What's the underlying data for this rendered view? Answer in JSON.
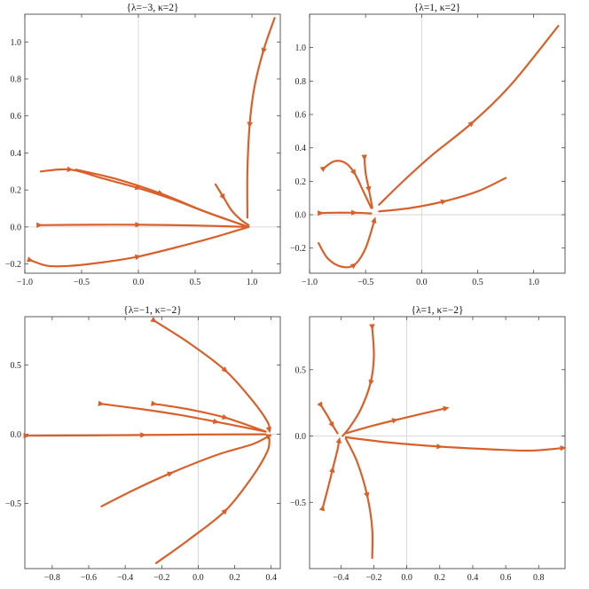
{
  "chart_data": [
    {
      "type": "line",
      "title": "{λ=−3, κ=2}",
      "xlim": [
        -1.0,
        1.25
      ],
      "ylim": [
        -0.25,
        1.15
      ],
      "x_ticks": [
        -1.0,
        -0.5,
        0.0,
        0.5,
        1.0
      ],
      "x_tick_labels": [
        "−1.0",
        "−0.5",
        "0.0",
        "0.5",
        "1.0"
      ],
      "y_ticks": [
        -0.2,
        0.0,
        0.2,
        0.4,
        0.6,
        0.8,
        1.0
      ],
      "y_tick_labels": [
        "−0.2",
        "0.0",
        "0.2",
        "0.4",
        "0.6",
        "0.8",
        "1.0"
      ],
      "series": [
        {
          "points": [
            [
              1.2,
              1.13
            ],
            [
              1.1,
              0.95
            ],
            [
              1.02,
              0.75
            ],
            [
              0.98,
              0.55
            ],
            [
              0.96,
              0.3
            ],
            [
              0.96,
              0.05
            ]
          ],
          "arrows_at": [
            1,
            3
          ]
        },
        {
          "points": [
            [
              0.68,
              0.23
            ],
            [
              0.75,
              0.16
            ],
            [
              0.82,
              0.09
            ],
            [
              0.9,
              0.04
            ],
            [
              0.97,
              0.01
            ]
          ],
          "arrows_at": [
            1
          ]
        },
        {
          "points": [
            [
              -0.86,
              0.3
            ],
            [
              -0.6,
              0.31
            ],
            [
              -0.3,
              0.26
            ],
            [
              0.0,
              0.21
            ],
            [
              0.3,
              0.15
            ],
            [
              0.6,
              0.08
            ],
            [
              0.97,
              0.0
            ]
          ],
          "arrows_at": [
            1,
            3
          ]
        },
        {
          "points": [
            [
              -0.55,
              0.31
            ],
            [
              -0.2,
              0.26
            ],
            [
              0.2,
              0.18
            ],
            [
              0.6,
              0.08
            ],
            [
              0.97,
              0.0
            ]
          ],
          "arrows_at": [
            2
          ]
        },
        {
          "points": [
            [
              -0.87,
              0.01
            ],
            [
              -0.4,
              0.012
            ],
            [
              0.0,
              0.012
            ],
            [
              0.5,
              0.008
            ],
            [
              0.97,
              0.0
            ]
          ],
          "arrows_at": [
            0,
            2
          ]
        },
        {
          "points": [
            [
              -0.95,
              -0.18
            ],
            [
              -0.8,
              -0.21
            ],
            [
              -0.6,
              -0.21
            ],
            [
              -0.3,
              -0.19
            ],
            [
              0.0,
              -0.16
            ],
            [
              0.4,
              -0.1
            ],
            [
              0.7,
              -0.05
            ],
            [
              0.97,
              0.0
            ]
          ],
          "arrows_at": [
            0,
            4
          ]
        }
      ]
    },
    {
      "type": "line",
      "title": "{λ=1, κ=2}",
      "xlim": [
        -1.0,
        1.28
      ],
      "ylim": [
        -0.35,
        1.2
      ],
      "x_ticks": [
        -1.0,
        -0.5,
        0.0,
        0.5,
        1.0
      ],
      "x_tick_labels": [
        "−1.0",
        "−0.5",
        "0.0",
        "0.5",
        "1.0"
      ],
      "y_ticks": [
        -0.2,
        0.0,
        0.2,
        0.4,
        0.6,
        0.8,
        1.0
      ],
      "y_tick_labels": [
        "−0.2",
        "0.0",
        "0.2",
        "0.4",
        "0.6",
        "0.8",
        "1.0"
      ],
      "series": [
        {
          "points": [
            [
              -0.38,
              0.06
            ],
            [
              -0.15,
              0.21
            ],
            [
              0.1,
              0.36
            ],
            [
              0.45,
              0.55
            ],
            [
              0.8,
              0.78
            ],
            [
              1.22,
              1.13
            ]
          ],
          "arrows_at": [
            3
          ]
        },
        {
          "points": [
            [
              -0.38,
              0.02
            ],
            [
              -0.1,
              0.04
            ],
            [
              0.2,
              0.08
            ],
            [
              0.5,
              0.14
            ],
            [
              0.75,
              0.22
            ]
          ],
          "arrows_at": [
            2
          ]
        },
        {
          "points": [
            [
              -0.87,
              0.28
            ],
            [
              -0.78,
              0.32
            ],
            [
              -0.68,
              0.31
            ],
            [
              -0.6,
              0.25
            ],
            [
              -0.52,
              0.14
            ],
            [
              -0.45,
              0.04
            ]
          ],
          "arrows_at": [
            0,
            3
          ]
        },
        {
          "points": [
            [
              -0.51,
              0.34
            ],
            [
              -0.5,
              0.25
            ],
            [
              -0.47,
              0.15
            ],
            [
              -0.44,
              0.04
            ]
          ],
          "arrows_at": [
            0,
            2
          ]
        },
        {
          "points": [
            [
              -0.9,
              0.01
            ],
            [
              -0.78,
              0.012
            ],
            [
              -0.6,
              0.012
            ],
            [
              -0.45,
              0.008
            ]
          ],
          "arrows_at": [
            0,
            2
          ]
        },
        {
          "points": [
            [
              -0.92,
              -0.17
            ],
            [
              -0.84,
              -0.26
            ],
            [
              -0.72,
              -0.31
            ],
            [
              -0.6,
              -0.3
            ],
            [
              -0.5,
              -0.2
            ],
            [
              -0.42,
              -0.03
            ]
          ],
          "arrows_at": [
            3,
            5
          ]
        }
      ]
    },
    {
      "type": "line",
      "title": "{λ=−1, κ=−2}",
      "xlim": [
        -0.95,
        0.45
      ],
      "ylim": [
        -0.97,
        0.85
      ],
      "x_ticks": [
        -0.8,
        -0.6,
        -0.4,
        -0.2,
        0.0,
        0.2,
        0.4
      ],
      "x_tick_labels": [
        "−0.8",
        "−0.6",
        "−0.4",
        "−0.2",
        "0.0",
        "0.2",
        "0.4"
      ],
      "y_ticks": [
        -0.5,
        0.0,
        0.5
      ],
      "y_tick_labels": [
        "−0.5",
        "0.0",
        "0.5"
      ],
      "series": [
        {
          "points": [
            [
              -0.24,
              0.82
            ],
            [
              -0.05,
              0.66
            ],
            [
              0.15,
              0.46
            ],
            [
              0.3,
              0.24
            ],
            [
              0.38,
              0.09
            ],
            [
              0.39,
              0.03
            ]
          ],
          "arrows_at": [
            0,
            2,
            5
          ]
        },
        {
          "points": [
            [
              -0.53,
              0.22
            ],
            [
              -0.3,
              0.18
            ],
            [
              -0.1,
              0.14
            ],
            [
              0.1,
              0.09
            ],
            [
              0.37,
              0.02
            ]
          ],
          "arrows_at": [
            0,
            3
          ]
        },
        {
          "points": [
            [
              -0.24,
              0.22
            ],
            [
              -0.05,
              0.18
            ],
            [
              0.15,
              0.12
            ],
            [
              0.37,
              0.02
            ]
          ],
          "arrows_at": [
            0,
            2
          ]
        },
        {
          "points": [
            [
              -0.94,
              -0.01
            ],
            [
              -0.6,
              -0.008
            ],
            [
              -0.3,
              -0.005
            ],
            [
              0.0,
              -0.002
            ],
            [
              0.37,
              0.0
            ]
          ],
          "arrows_at": [
            0,
            2
          ]
        },
        {
          "points": [
            [
              -0.53,
              -0.52
            ],
            [
              -0.35,
              -0.4
            ],
            [
              -0.15,
              -0.28
            ],
            [
              0.1,
              -0.15
            ],
            [
              0.3,
              -0.07
            ],
            [
              0.39,
              -0.01
            ]
          ],
          "arrows_at": [
            2,
            5
          ]
        },
        {
          "points": [
            [
              -0.23,
              -0.93
            ],
            [
              -0.05,
              -0.76
            ],
            [
              0.15,
              -0.55
            ],
            [
              0.3,
              -0.3
            ],
            [
              0.38,
              -0.12
            ],
            [
              0.39,
              -0.03
            ]
          ],
          "arrows_at": [
            2
          ]
        }
      ]
    },
    {
      "type": "line",
      "title": "{λ=1, κ=−2}",
      "xlim": [
        -0.59,
        0.96
      ],
      "ylim": [
        -1.0,
        0.9
      ],
      "x_ticks": [
        -0.4,
        -0.2,
        0.0,
        0.2,
        0.4,
        0.6,
        0.8
      ],
      "x_tick_labels": [
        "−0.4",
        "−0.2",
        "0.0",
        "0.2",
        "0.4",
        "0.6",
        "0.8"
      ],
      "y_ticks": [
        -0.5,
        0.0,
        0.5
      ],
      "y_tick_labels": [
        "−0.5",
        "0.0",
        "0.5"
      ],
      "series": [
        {
          "points": [
            [
              -0.21,
              0.82
            ],
            [
              -0.2,
              0.6
            ],
            [
              -0.22,
              0.4
            ],
            [
              -0.28,
              0.2
            ],
            [
              -0.35,
              0.06
            ],
            [
              -0.39,
              0.0
            ]
          ],
          "arrows_at": [
            0,
            2
          ]
        },
        {
          "points": [
            [
              -0.37,
              0.02
            ],
            [
              -0.2,
              0.08
            ],
            [
              -0.07,
              0.12
            ],
            [
              0.1,
              0.17
            ],
            [
              0.24,
              0.21
            ]
          ],
          "arrows_at": [
            2,
            4
          ]
        },
        {
          "points": [
            [
              -0.52,
              0.23
            ],
            [
              -0.48,
              0.15
            ],
            [
              -0.45,
              0.08
            ],
            [
              -0.42,
              0.02
            ]
          ],
          "arrows_at": [
            0,
            2
          ]
        },
        {
          "points": [
            [
              -0.51,
              -0.54
            ],
            [
              -0.48,
              -0.4
            ],
            [
              -0.45,
              -0.25
            ],
            [
              -0.42,
              -0.1
            ],
            [
              -0.41,
              -0.03
            ]
          ],
          "arrows_at": [
            0,
            2,
            4
          ]
        },
        {
          "points": [
            [
              -0.37,
              -0.02
            ],
            [
              -0.3,
              -0.2
            ],
            [
              -0.24,
              -0.45
            ],
            [
              -0.21,
              -0.7
            ],
            [
              -0.21,
              -0.92
            ]
          ],
          "arrows_at": [
            2
          ]
        },
        {
          "points": [
            [
              -0.37,
              -0.01
            ],
            [
              -0.1,
              -0.05
            ],
            [
              0.2,
              -0.08
            ],
            [
              0.5,
              -0.1
            ],
            [
              0.75,
              -0.11
            ],
            [
              0.95,
              -0.09
            ]
          ],
          "arrows_at": [
            2,
            5
          ]
        }
      ]
    }
  ],
  "style": {
    "curve_color": "#d9602a",
    "frame_color": "#333333",
    "zero_line_color": "#cfcfcf"
  }
}
